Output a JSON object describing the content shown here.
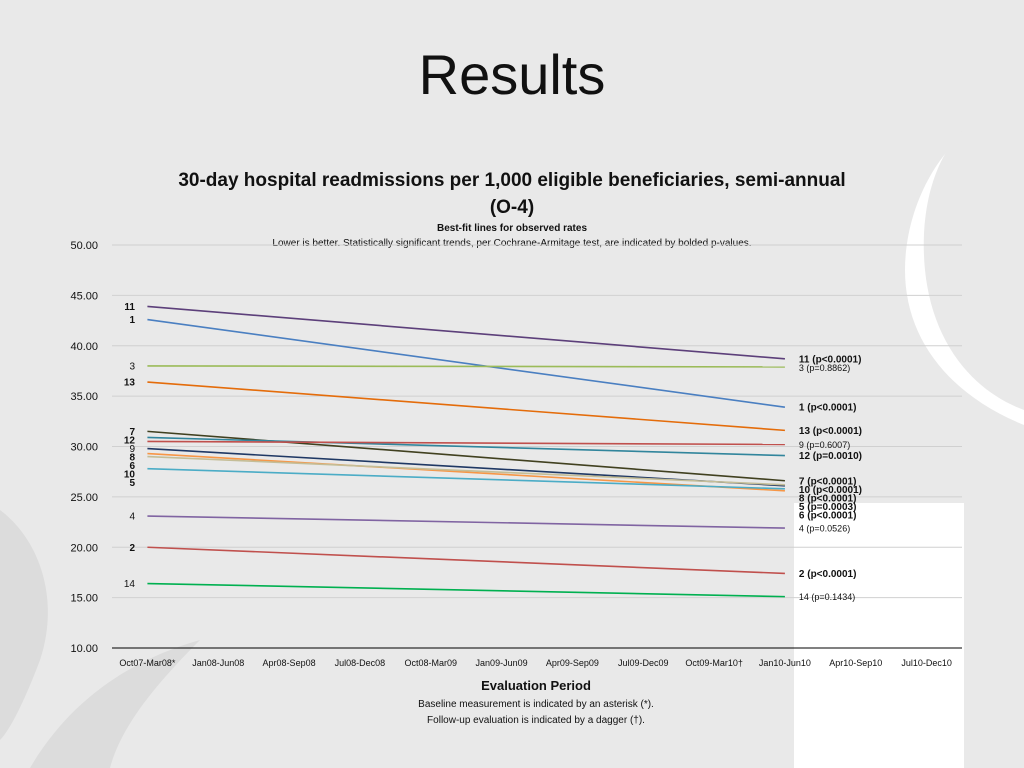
{
  "slide": {
    "title": "Results"
  },
  "chart_data": {
    "type": "line",
    "title": [
      "30-day hospital readmissions per 1,000 eligible beneficiaries, semi-annual",
      "(O-4)"
    ],
    "subtitle": "Best-fit lines for observed rates",
    "subtitle2": "Lower is better. Statistically significant trends, per Cochrane-Armitage test, are indicated by bolded p-values.",
    "xlabel": "Evaluation Period",
    "notes": [
      "Baseline measurement is indicated by an asterisk (*).",
      "Follow-up evaluation is indicated by a dagger (†)."
    ],
    "categories": [
      "Oct07-Mar08*",
      "Jan08-Jun08",
      "Apr08-Sep08",
      "Jul08-Dec08",
      "Oct08-Mar09",
      "Jan09-Jun09",
      "Apr09-Sep09",
      "Jul09-Dec09",
      "Oct09-Mar10†",
      "Jan10-Jun10",
      "Apr10-Sep10",
      "Jul10-Dec10"
    ],
    "ylim": [
      10,
      50
    ],
    "yticks": [
      "10.00",
      "15.00",
      "20.00",
      "25.00",
      "30.00",
      "35.00",
      "40.00",
      "45.00",
      "50.00"
    ],
    "grid": true,
    "series": [
      {
        "name": "11",
        "color": "#5c3f7a",
        "start": 43.9,
        "end": 38.7,
        "end_label": "11 (p<0.0001)",
        "bold": true
      },
      {
        "name": "1",
        "color": "#4a7fc1",
        "start": 42.6,
        "end": 33.9,
        "end_label": "1 (p<0.0001)",
        "bold": true
      },
      {
        "name": "3",
        "color": "#9bbb59",
        "start": 38.0,
        "end": 37.9,
        "end_label": "3 (p=0.8862)",
        "bold": false
      },
      {
        "name": "13",
        "color": "#e46c0a",
        "start": 36.4,
        "end": 31.6,
        "end_label": "13 (p<0.0001)",
        "bold": true
      },
      {
        "name": "7",
        "color": "#404020",
        "start": 31.5,
        "end": 26.6,
        "end_label": "7 (p<0.0001)",
        "bold": true
      },
      {
        "name": "12",
        "color": "#31859c",
        "start": 30.9,
        "end": 29.1,
        "end_label": "12 (p=0.0010)",
        "bold": true
      },
      {
        "name": "9",
        "color": "#c0504d",
        "start": 30.5,
        "end": 30.2,
        "end_label": "9 (p=0.6007)",
        "bold": false
      },
      {
        "name": "8",
        "color": "#1f3864",
        "start": 29.8,
        "end": 26.1,
        "end_label": "8 (p<0.0001)",
        "bold": true
      },
      {
        "name": "6",
        "color": "#f79646",
        "start": 29.3,
        "end": 25.6,
        "end_label": "6 (p<0.0001)",
        "bold": true
      },
      {
        "name": "10",
        "color": "#c4bd97",
        "start": 29.0,
        "end": 26.2,
        "end_label": "10 (p<0.0001)",
        "bold": true
      },
      {
        "name": "5",
        "color": "#4bacc6",
        "start": 27.8,
        "end": 25.8,
        "end_label": "5 (p=0.0003)",
        "bold": true
      },
      {
        "name": "4",
        "color": "#8064a2",
        "start": 23.1,
        "end": 21.9,
        "end_label": "4 (p=0.0526)",
        "bold": false
      },
      {
        "name": "2",
        "color": "#c0504d",
        "start": 20.0,
        "end": 17.4,
        "end_label": "2 (p<0.0001)",
        "bold": true
      },
      {
        "name": "14",
        "color": "#00b050",
        "start": 16.4,
        "end": 15.1,
        "end_label": "14 (p=0.1434)",
        "bold": false
      }
    ],
    "start_index": 0,
    "end_index": 9
  }
}
